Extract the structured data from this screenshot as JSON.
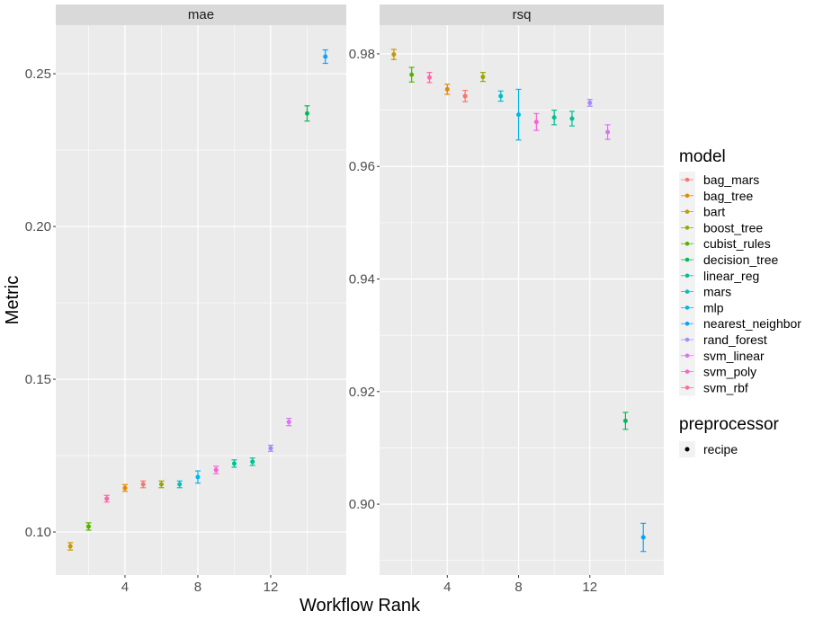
{
  "chart_data": {
    "type": "scatter",
    "xlabel": "Workflow Rank",
    "ylabel": "Metric",
    "x_ticks": [
      4,
      8,
      12
    ],
    "grid": true,
    "legend_position": "right",
    "legend": {
      "model_title": "model",
      "models": [
        "bag_mars",
        "bag_tree",
        "bart",
        "boost_tree",
        "cubist_rules",
        "decision_tree",
        "linear_reg",
        "mars",
        "mlp",
        "nearest_neighbor",
        "rand_forest",
        "svm_linear",
        "svm_poly",
        "svm_rbf"
      ],
      "colors": [
        "#F8766D",
        "#E38900",
        "#C49A00",
        "#99A800",
        "#53B400",
        "#00BC56",
        "#00C094",
        "#00BFC4",
        "#00B6EB",
        "#06A4FF",
        "#A58AFF",
        "#DF70F8",
        "#FB61D7",
        "#FF66A8"
      ],
      "preprocessor_title": "preprocessor",
      "preprocessors": [
        "recipe"
      ]
    },
    "rank_models": [
      "bart",
      "cubist_rules",
      "svm_rbf",
      "bag_tree",
      "bag_mars",
      "boost_tree",
      "mars",
      "mlp",
      "svm_poly",
      "linear_reg",
      "linear_reg",
      "rand_forest",
      "svm_linear",
      "decision_tree",
      "nearest_neighbor"
    ],
    "panels": [
      {
        "title": "mae",
        "xlim": [
          0.2,
          16.15
        ],
        "ylim": [
          0.0859,
          0.2659
        ],
        "y_ticks": [
          0.1,
          0.15,
          0.2,
          0.25
        ],
        "y_tick_labels": [
          "0.10",
          "0.15",
          "0.20",
          "0.25"
        ],
        "mean": [
          0.0953,
          0.1018,
          0.1109,
          0.1144,
          0.1156,
          0.1156,
          0.1156,
          0.118,
          0.1203,
          0.1224,
          0.123,
          0.1274,
          0.136,
          0.237,
          0.2556
        ],
        "err": [
          0.0012,
          0.0012,
          0.0011,
          0.0011,
          0.0011,
          0.0011,
          0.0011,
          0.002,
          0.0012,
          0.0012,
          0.0012,
          0.001,
          0.0012,
          0.0025,
          0.0022
        ]
      },
      {
        "title": "rsq",
        "xlim": [
          0.2,
          16.15
        ],
        "ylim": [
          0.8874,
          0.9851
        ],
        "y_ticks": [
          0.9,
          0.92,
          0.94,
          0.96,
          0.98
        ],
        "y_tick_labels": [
          "0.90",
          "0.92",
          "0.94",
          "0.96",
          "0.98"
        ],
        "mean": [
          0.9799,
          0.9763,
          0.9758,
          0.9737,
          0.9725,
          0.9759,
          0.9725,
          0.9692,
          0.9679,
          0.9687,
          0.9685,
          0.9713,
          0.9661,
          0.9148,
          0.8941
        ],
        "err": [
          0.0009,
          0.0013,
          0.0009,
          0.0009,
          0.001,
          0.0008,
          0.0009,
          0.0045,
          0.0015,
          0.0013,
          0.0013,
          0.0006,
          0.0013,
          0.0015,
          0.0025
        ]
      }
    ]
  }
}
